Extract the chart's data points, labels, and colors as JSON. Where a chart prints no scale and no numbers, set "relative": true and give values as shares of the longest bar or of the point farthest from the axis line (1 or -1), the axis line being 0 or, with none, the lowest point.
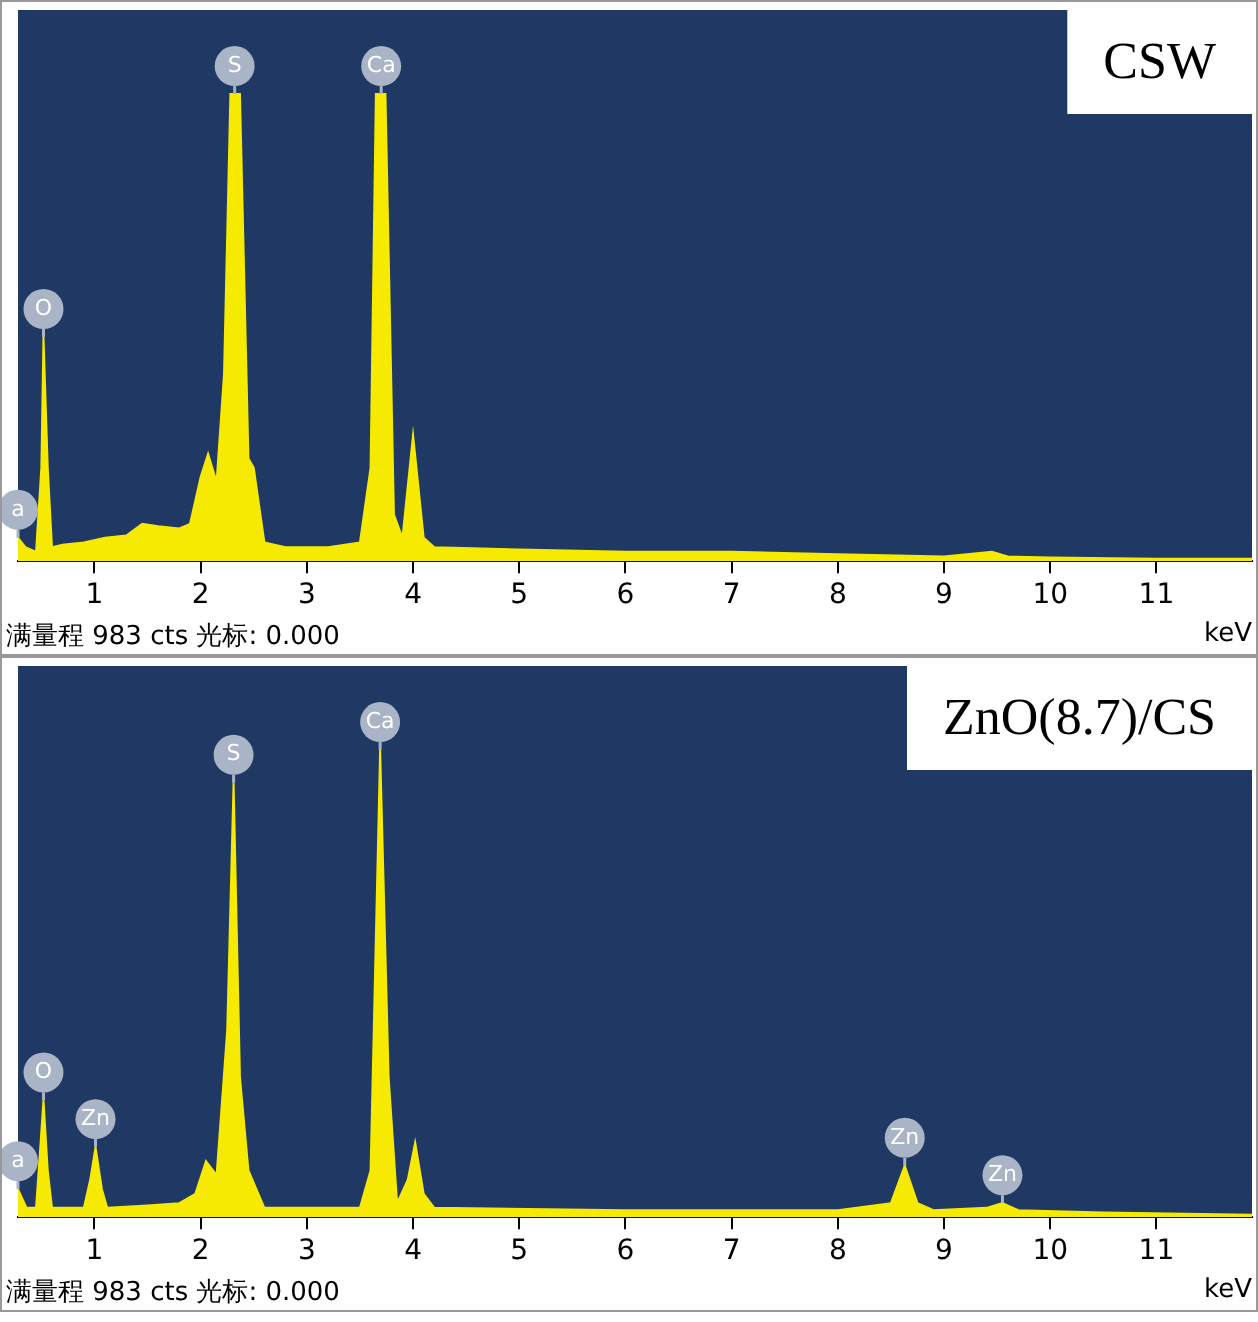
{
  "chart_data": [
    {
      "type": "area",
      "title": "CSW",
      "xlabel": "keV",
      "relative": true,
      "xlim": [
        0.28,
        11.9
      ],
      "xticks": [
        1,
        2,
        3,
        4,
        5,
        6,
        7,
        8,
        9,
        10,
        11
      ],
      "grid": false,
      "legend": false,
      "tick_labels": "x",
      "series": [
        {
          "color": "#f5ea00",
          "x": [
            0.28,
            0.35,
            0.45,
            0.5,
            0.52,
            0.56,
            0.6,
            0.7,
            0.9,
            1.1,
            1.3,
            1.45,
            1.6,
            1.8,
            1.9,
            2.0,
            2.07,
            2.15,
            2.22,
            2.28,
            2.37,
            2.45,
            2.5,
            2.6,
            2.8,
            3.2,
            3.5,
            3.6,
            3.65,
            3.74,
            3.82,
            3.9,
            4.0,
            4.1,
            4.2,
            5,
            6,
            7,
            8,
            9,
            9.45,
            9.6,
            10,
            11,
            11.9
          ],
          "values": [
            0.05,
            0.03,
            0.02,
            0.2,
            0.48,
            0.2,
            0.03,
            0.035,
            0.04,
            0.05,
            0.055,
            0.08,
            0.075,
            0.07,
            0.08,
            0.18,
            0.23,
            0.17,
            0.4,
            1,
            1,
            0.22,
            0.2,
            0.04,
            0.03,
            0.03,
            0.04,
            0.2,
            1,
            1,
            0.1,
            0.05,
            0.27,
            0.05,
            0.03,
            0.025,
            0.02,
            0.02,
            0.015,
            0.01,
            0.02,
            0.01,
            0.008,
            0.005,
            0.005
          ]
        }
      ],
      "annotations": [
        {
          "text": "a",
          "x": 0.28,
          "y": 0.05
        },
        {
          "text": "O",
          "x": 0.52,
          "y": 0.48
        },
        {
          "text": "S",
          "x": 2.32,
          "y": 1
        },
        {
          "text": "Ca",
          "x": 3.7,
          "y": 1
        },
        "满量程 983 cts 光标: 0.000"
      ]
    },
    {
      "type": "area",
      "title": "ZnO(8.7)/CS",
      "xlabel": "keV",
      "relative": true,
      "xlim": [
        0.28,
        11.9
      ],
      "xticks": [
        1,
        2,
        3,
        4,
        5,
        6,
        7,
        8,
        9,
        10,
        11
      ],
      "grid": false,
      "legend": false,
      "tick_labels": "x",
      "series": [
        {
          "color": "#f5ea00",
          "x": [
            0.28,
            0.36,
            0.45,
            0.49,
            0.52,
            0.56,
            0.6,
            0.9,
            0.96,
            1.01,
            1.07,
            1.12,
            1.5,
            1.8,
            1.95,
            2.05,
            2.15,
            2.25,
            2.31,
            2.37,
            2.45,
            2.6,
            3.5,
            3.6,
            3.69,
            3.77,
            3.85,
            3.95,
            4.02,
            4.1,
            4.2,
            6,
            8,
            8.5,
            8.63,
            8.75,
            8.9,
            9.4,
            9.55,
            9.7,
            10.5,
            11.9
          ],
          "values": [
            0.06,
            0.02,
            0.02,
            0.15,
            0.25,
            0.1,
            0.02,
            0.02,
            0.08,
            0.15,
            0.06,
            0.02,
            0.025,
            0.03,
            0.05,
            0.12,
            0.09,
            0.4,
            0.93,
            0.3,
            0.1,
            0.02,
            0.02,
            0.1,
            1,
            0.3,
            0.03,
            0.08,
            0.16,
            0.05,
            0.02,
            0.015,
            0.015,
            0.03,
            0.11,
            0.03,
            0.015,
            0.02,
            0.03,
            0.015,
            0.01,
            0.005
          ]
        }
      ],
      "annotations": [
        {
          "text": "a",
          "x": 0.28,
          "y": 0.06
        },
        {
          "text": "O",
          "x": 0.52,
          "y": 0.25
        },
        {
          "text": "Zn",
          "x": 1.01,
          "y": 0.15
        },
        {
          "text": "S",
          "x": 2.31,
          "y": 0.93
        },
        {
          "text": "Ca",
          "x": 3.69,
          "y": 1
        },
        {
          "text": "Zn",
          "x": 8.63,
          "y": 0.11
        },
        {
          "text": "Zn",
          "x": 9.55,
          "y": 0.03
        },
        "满量程 983 cts 光标: 0.000"
      ]
    }
  ]
}
